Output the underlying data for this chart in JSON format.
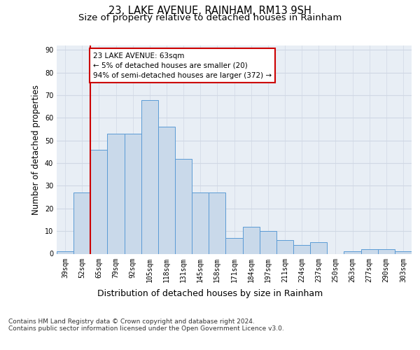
{
  "title_line1": "23, LAKE AVENUE, RAINHAM, RM13 9SH",
  "title_line2": "Size of property relative to detached houses in Rainham",
  "xlabel": "Distribution of detached houses by size in Rainham",
  "ylabel": "Number of detached properties",
  "categories": [
    "39sqm",
    "52sqm",
    "65sqm",
    "79sqm",
    "92sqm",
    "105sqm",
    "118sqm",
    "131sqm",
    "145sqm",
    "158sqm",
    "171sqm",
    "184sqm",
    "197sqm",
    "211sqm",
    "224sqm",
    "237sqm",
    "250sqm",
    "263sqm",
    "277sqm",
    "290sqm",
    "303sqm"
  ],
  "values": [
    1,
    27,
    46,
    53,
    53,
    68,
    56,
    42,
    27,
    27,
    7,
    12,
    10,
    6,
    4,
    5,
    0,
    1,
    2,
    2,
    1
  ],
  "bar_color": "#c9d9ea",
  "bar_edge_color": "#5b9bd5",
  "vline_index": 1,
  "vline_color": "#cc0000",
  "annotation_text": "23 LAKE AVENUE: 63sqm\n← 5% of detached houses are smaller (20)\n94% of semi-detached houses are larger (372) →",
  "annotation_box_color": "#ffffff",
  "annotation_border_color": "#cc0000",
  "ylim": [
    0,
    92
  ],
  "yticks": [
    0,
    10,
    20,
    30,
    40,
    50,
    60,
    70,
    80,
    90
  ],
  "footer_text": "Contains HM Land Registry data © Crown copyright and database right 2024.\nContains public sector information licensed under the Open Government Licence v3.0.",
  "grid_color": "#d0d8e4",
  "background_color": "#e8eef5",
  "title_fontsize": 10.5,
  "subtitle_fontsize": 9.5,
  "tick_fontsize": 7,
  "ylabel_fontsize": 8.5,
  "xlabel_fontsize": 9,
  "footer_fontsize": 6.5,
  "annotation_fontsize": 7.5
}
